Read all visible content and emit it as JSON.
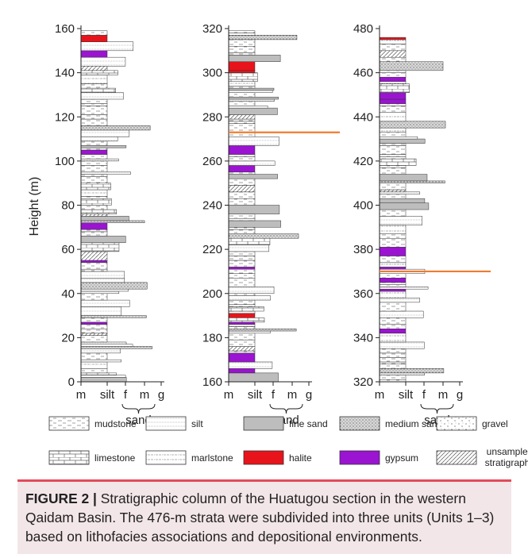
{
  "figure": {
    "y_axis_title": "Height (m)",
    "columns": [
      {
        "ticks": [
          "0",
          "20",
          "40",
          "60",
          "80",
          "100",
          "120",
          "140",
          "160"
        ]
      },
      {
        "ticks": [
          "160",
          "180",
          "200",
          "220",
          "240",
          "260",
          "280",
          "300",
          "320"
        ]
      },
      {
        "ticks": [
          "320",
          "340",
          "360",
          "380",
          "400",
          "420",
          "440",
          "460",
          "480"
        ]
      }
    ],
    "grain_labels": [
      "m",
      "silt",
      "f",
      "m",
      "g"
    ],
    "sand_label": "sand",
    "marker_lines": [
      {
        "column": 2,
        "height": 273,
        "color": "#f07b2e"
      },
      {
        "column": 3,
        "height": 370,
        "color": "#f07b2e"
      }
    ],
    "legend": [
      {
        "label": "mudstone",
        "pattern": "mudstone"
      },
      {
        "label": "silt",
        "pattern": "silt"
      },
      {
        "label": "fine sand",
        "pattern": "fine-sand"
      },
      {
        "label": "medium sand",
        "pattern": "medium-sand"
      },
      {
        "label": "gravel",
        "pattern": "gravel"
      },
      {
        "label": "limestone",
        "pattern": "limestone"
      },
      {
        "label": "marlstone",
        "pattern": "marlstone"
      },
      {
        "label": "halite",
        "pattern": "halite"
      },
      {
        "label": "gypsum",
        "pattern": "gypsum"
      },
      {
        "label": "unsampled stratigraphy",
        "pattern": "unsampled"
      }
    ],
    "colors": {
      "halite": "#e8141b",
      "gypsum": "#9b14d1",
      "marker": "#f07b2e",
      "caption_bg": "#f3e6e8",
      "caption_rule": "#e24b5a"
    }
  },
  "caption": {
    "label": "FIGURE 2 |",
    "line1": "Stratigraphic column of the Huatugou section in the western",
    "line2": "Qaidam Basin. The 476-m strata were subdivided into three units (Units 1–3)",
    "line3": "based on lithofacies associations and depositional environments."
  }
}
